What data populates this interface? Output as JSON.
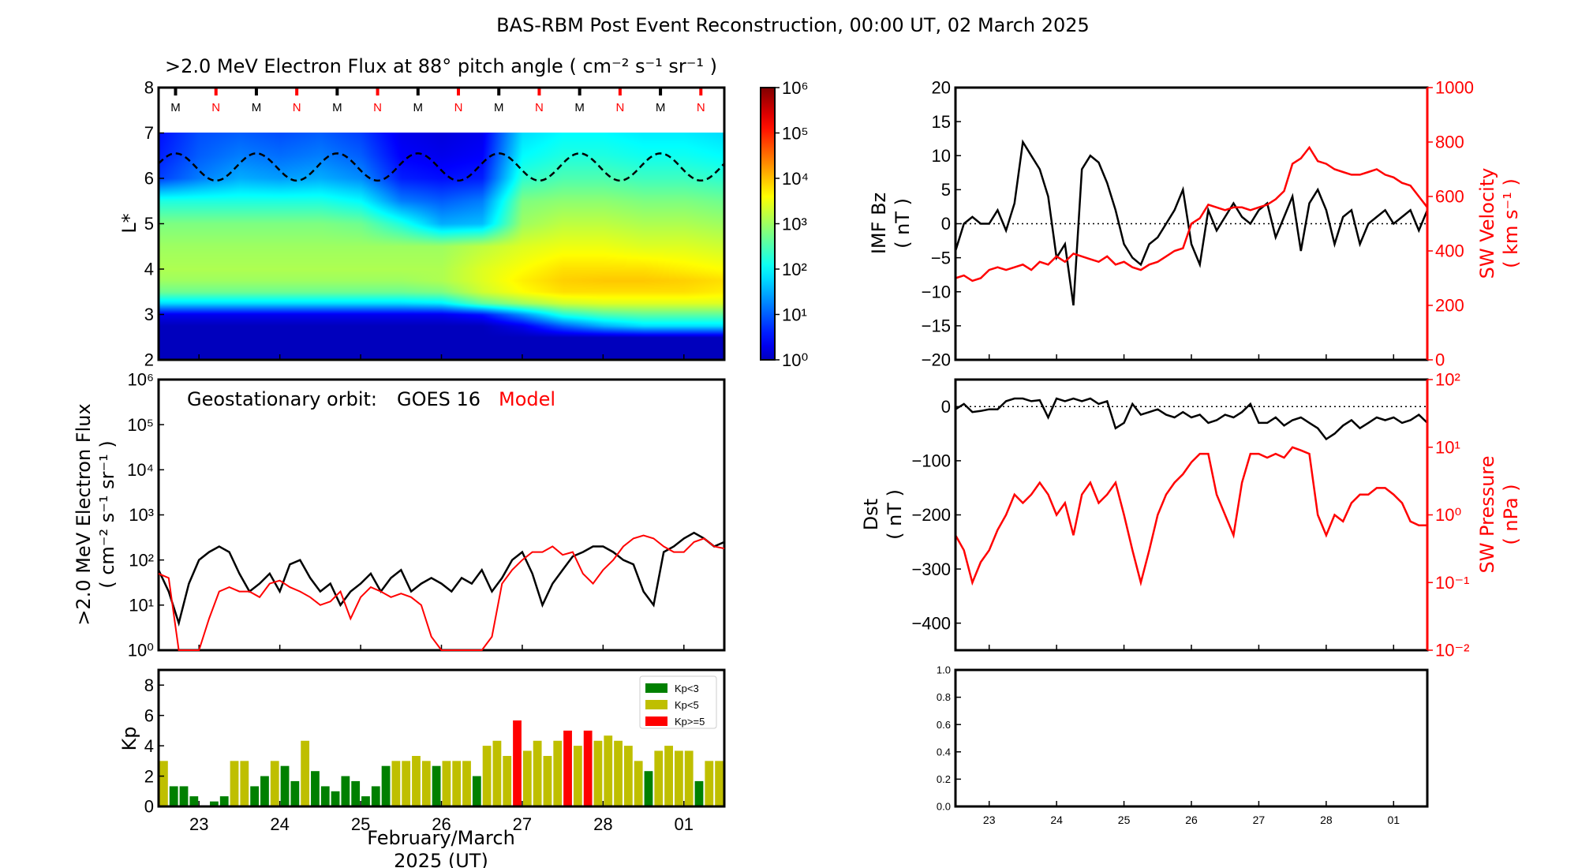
{
  "title": "BAS-RBM Post Event Reconstruction, 00:00 UT, 02 March 2025",
  "x_axis": {
    "tick_labels": [
      "23",
      "24",
      "25",
      "26",
      "27",
      "28",
      "01"
    ],
    "label_line1": "February/March",
    "label_line2": "2025 (UT)",
    "range": [
      "2025-02-22 12:00",
      "2025-03-01 12:00"
    ]
  },
  "colors": {
    "red": "#ff0000",
    "kp_low": "#008000",
    "kp_mid": "#bfbf00",
    "kp_high": "#ff0000"
  },
  "chart_data": [
    {
      "type": "heatmap",
      "title": ">2.0 MeV Electron Flux at 88° pitch angle ( cm⁻² s⁻¹ sr⁻¹ )",
      "ylabel": "L*",
      "ylim": [
        2,
        8
      ],
      "y_ticks": [
        "2",
        "3",
        "4",
        "5",
        "6",
        "7",
        "8"
      ],
      "time_days_from_start": [
        0,
        0.5,
        1,
        1.5,
        2,
        2.5,
        3,
        3.5,
        4,
        4.5,
        5,
        5.5,
        6,
        6.5,
        7
      ],
      "L_values": [
        2,
        2.5,
        2.75,
        3,
        3.25,
        3.5,
        3.75,
        4,
        4.5,
        5,
        5.5,
        6,
        6.5,
        7
      ],
      "log10_flux": [
        [
          0,
          0,
          0,
          0,
          0,
          0,
          0,
          0,
          0,
          0,
          0,
          0,
          0,
          0,
          0
        ],
        [
          0,
          0,
          0,
          0,
          0,
          0,
          0,
          0,
          0,
          0,
          0,
          0,
          0,
          0,
          0
        ],
        [
          0,
          0,
          0,
          0,
          0,
          0,
          0,
          0,
          0,
          0.3,
          1.0,
          1.5,
          1.8,
          1.8,
          1.8
        ],
        [
          0.3,
          0.3,
          0.3,
          0.3,
          0.3,
          0.3,
          0.3,
          0.3,
          0.5,
          1.3,
          2.2,
          2.5,
          2.6,
          2.6,
          2.6
        ],
        [
          1.8,
          1.8,
          1.8,
          1.8,
          1.8,
          1.8,
          1.8,
          1.9,
          2.6,
          3.0,
          3.3,
          3.4,
          3.4,
          3.4,
          3.4
        ],
        [
          2.7,
          2.7,
          2.7,
          2.7,
          2.7,
          2.7,
          2.7,
          2.8,
          3.3,
          3.6,
          3.8,
          3.8,
          3.8,
          3.8,
          3.7
        ],
        [
          3.0,
          3.0,
          3.0,
          3.0,
          3.0,
          3.0,
          3.0,
          3.1,
          3.4,
          3.7,
          3.9,
          3.95,
          3.95,
          3.9,
          3.8
        ],
        [
          3.1,
          3.1,
          3.1,
          3.1,
          3.1,
          3.1,
          3.1,
          3.1,
          3.4,
          3.6,
          3.8,
          3.8,
          3.8,
          3.7,
          3.6
        ],
        [
          3.0,
          3.0,
          3.0,
          3.0,
          3.0,
          3.0,
          3.0,
          3.0,
          3.2,
          3.4,
          3.5,
          3.5,
          3.4,
          3.4,
          3.3
        ],
        [
          2.8,
          2.8,
          2.8,
          2.8,
          2.8,
          2.7,
          2.2,
          1.5,
          1.6,
          3.0,
          3.2,
          3.2,
          3.1,
          3.1,
          3.0
        ],
        [
          2.2,
          2.2,
          2.2,
          2.2,
          2.2,
          2.0,
          1.2,
          1.0,
          1.2,
          2.8,
          2.9,
          2.9,
          2.8,
          2.8,
          2.7
        ],
        [
          0.8,
          1.2,
          1.5,
          1.4,
          1.5,
          1.3,
          0.6,
          0.5,
          0.6,
          2.3,
          2.5,
          2.5,
          2.4,
          2.4,
          2.3
        ],
        [
          0.6,
          1.0,
          1.2,
          1.1,
          1.2,
          1.0,
          0.4,
          0.3,
          0.4,
          2.0,
          2.2,
          2.2,
          2.1,
          2.1,
          2.0
        ],
        [
          0.5,
          0.9,
          1.0,
          0.9,
          1.0,
          0.8,
          0.3,
          0.2,
          0.3,
          1.8,
          2.0,
          2.0,
          1.9,
          1.9,
          1.8
        ]
      ],
      "geo_L_curve": {
        "mean": 6.25,
        "amplitude": 0.3,
        "peak_phase_days": 0.21
      },
      "orbit_markers": [
        {
          "label": "M",
          "t": 0.21,
          "color": "#000000"
        },
        {
          "label": "N",
          "t": 0.71,
          "color": "#ff0000"
        },
        {
          "label": "M",
          "t": 1.21,
          "color": "#000000"
        },
        {
          "label": "N",
          "t": 1.71,
          "color": "#ff0000"
        },
        {
          "label": "M",
          "t": 2.21,
          "color": "#000000"
        },
        {
          "label": "N",
          "t": 2.71,
          "color": "#ff0000"
        },
        {
          "label": "M",
          "t": 3.21,
          "color": "#000000"
        },
        {
          "label": "N",
          "t": 3.71,
          "color": "#ff0000"
        },
        {
          "label": "M",
          "t": 4.21,
          "color": "#000000"
        },
        {
          "label": "N",
          "t": 4.71,
          "color": "#ff0000"
        },
        {
          "label": "M",
          "t": 5.21,
          "color": "#000000"
        },
        {
          "label": "N",
          "t": 5.71,
          "color": "#ff0000"
        },
        {
          "label": "M",
          "t": 6.21,
          "color": "#000000"
        },
        {
          "label": "N",
          "t": 6.71,
          "color": "#ff0000"
        }
      ],
      "colorbar": {
        "scale": "log",
        "range": [
          1,
          1000000
        ],
        "tick_exponents": [
          0,
          1,
          2,
          3,
          4,
          5,
          6
        ],
        "colormap": "jet"
      }
    },
    {
      "type": "line",
      "annotation": {
        "prefix": "Geostationary orbit:",
        "satellite": "GOES 16",
        "model": "Model"
      },
      "ylabel_line1": ">2.0 MeV Electron Flux",
      "ylabel_line2": "( cm⁻² s⁻¹ sr⁻¹ )",
      "yscale": "log",
      "ylim": [
        1,
        1000000
      ],
      "tick_exponents": [
        0,
        1,
        2,
        3,
        4,
        5,
        6
      ],
      "x_step_hours": 3,
      "series": [
        {
          "color": "#000000",
          "values": [
            60,
            20,
            4,
            30,
            100,
            150,
            200,
            150,
            50,
            20,
            30,
            50,
            20,
            80,
            100,
            40,
            20,
            30,
            10,
            20,
            30,
            50,
            20,
            40,
            60,
            20,
            30,
            40,
            30,
            20,
            40,
            30,
            60,
            20,
            40,
            100,
            150,
            50,
            10,
            30,
            60,
            120,
            150,
            200,
            200,
            150,
            100,
            80,
            20,
            10,
            150,
            200,
            300,
            400,
            300,
            200,
            250
          ]
        },
        {
          "color": "#ff0000",
          "values": [
            50,
            40,
            1,
            1,
            1,
            5,
            20,
            25,
            20,
            20,
            15,
            30,
            35,
            25,
            20,
            15,
            10,
            12,
            20,
            5,
            15,
            25,
            20,
            15,
            18,
            15,
            10,
            2,
            1,
            1,
            1,
            1,
            1,
            2,
            30,
            60,
            100,
            150,
            150,
            200,
            130,
            150,
            50,
            30,
            60,
            100,
            200,
            300,
            350,
            300,
            200,
            150,
            150,
            250,
            300,
            200,
            180
          ]
        }
      ]
    },
    {
      "type": "bar",
      "ylabel": "Kp",
      "ylim": [
        0,
        9
      ],
      "y_ticks": [
        "0",
        "2",
        "4",
        "6",
        "8"
      ],
      "bar_hours": 3,
      "values": [
        3,
        1.33,
        1.33,
        0.67,
        0,
        0.33,
        0.67,
        3,
        3,
        1.33,
        2,
        3,
        2.67,
        1.67,
        4.33,
        2.33,
        1.33,
        1,
        2,
        1.67,
        0.67,
        1.33,
        2.67,
        3,
        3,
        3.33,
        3,
        2.67,
        3,
        3,
        3,
        2,
        4,
        4.33,
        3.33,
        5.67,
        3.67,
        4.33,
        3.33,
        4.33,
        5,
        4,
        5,
        4.33,
        4.67,
        4.33,
        4,
        3,
        2.33,
        3.67,
        4,
        3.67,
        3.67,
        1.67,
        3,
        3
      ],
      "legend": [
        {
          "label": "Kp<3",
          "color": "#008000"
        },
        {
          "label": "Kp<5",
          "color": "#bfbf00"
        },
        {
          "label": "Kp>=5",
          "color": "#ff0000"
        }
      ],
      "legend_position": "top-right"
    },
    {
      "type": "line",
      "ylabel_left_line1": "IMF Bz",
      "ylabel_left_line2": "( nT )",
      "ylabel_right_line1": "SW Velocity",
      "ylabel_right_line2": "( km s⁻¹ )",
      "ylim_left": [
        -20,
        20
      ],
      "y_ticks_left": [
        "20",
        "15",
        "10",
        "5",
        "0",
        "−5",
        "−10",
        "−15",
        "−20"
      ],
      "ylim_right": [
        0,
        1000
      ],
      "y_ticks_right": [
        "0",
        "200",
        "400",
        "600",
        "800",
        "1000"
      ],
      "x_step_hours": 3,
      "series": [
        {
          "axis": "left",
          "color": "#000000",
          "values": [
            -4,
            0,
            1,
            0,
            0,
            2,
            -1,
            3,
            12,
            10,
            8,
            4,
            -5,
            -3,
            -12,
            8,
            10,
            9,
            6,
            2,
            -3,
            -5,
            -6,
            -3,
            -2,
            0,
            2,
            5,
            -3,
            -6,
            2,
            -1,
            1,
            3,
            1,
            0,
            2,
            3,
            -2,
            1,
            4,
            -4,
            3,
            5,
            2,
            -3,
            1,
            2,
            -3,
            0,
            1,
            2,
            0,
            1,
            2,
            -1,
            2
          ]
        },
        {
          "axis": "right",
          "color": "#ff0000",
          "values": [
            300,
            310,
            290,
            300,
            330,
            340,
            330,
            340,
            350,
            330,
            360,
            350,
            380,
            360,
            390,
            380,
            370,
            360,
            380,
            350,
            360,
            340,
            330,
            350,
            360,
            380,
            400,
            410,
            500,
            520,
            570,
            560,
            550,
            560,
            560,
            550,
            560,
            570,
            590,
            620,
            720,
            740,
            780,
            730,
            720,
            700,
            690,
            680,
            680,
            690,
            700,
            680,
            670,
            650,
            640,
            600,
            560
          ]
        }
      ]
    },
    {
      "type": "line",
      "ylabel_left_line1": "Dst",
      "ylabel_left_line2": "( nT )",
      "ylabel_right_line1": "SW Pressure",
      "ylabel_right_line2": "( nPa )",
      "ylim_left": [
        -450,
        50
      ],
      "y_ticks_left": [
        "0",
        "−100",
        "−200",
        "−300",
        "−400"
      ],
      "yscale_right": "log",
      "ylim_right": [
        0.01,
        100
      ],
      "tick_exponents_right": [
        -2,
        -1,
        0,
        1,
        2
      ],
      "x_step_hours": 3,
      "series": [
        {
          "axis": "left",
          "color": "#000000",
          "values": [
            -5,
            5,
            -10,
            -8,
            -5,
            -5,
            10,
            15,
            15,
            10,
            12,
            -20,
            15,
            10,
            15,
            10,
            15,
            5,
            10,
            -40,
            -30,
            5,
            -15,
            -10,
            -5,
            -15,
            -20,
            -10,
            -20,
            -15,
            -30,
            -25,
            -15,
            -20,
            -10,
            5,
            -30,
            -30,
            -20,
            -35,
            -25,
            -20,
            -30,
            -40,
            -60,
            -50,
            -35,
            -25,
            -40,
            -30,
            -20,
            -25,
            -20,
            -30,
            -25,
            -15,
            -30
          ]
        },
        {
          "axis": "right",
          "color": "#ff0000",
          "values": [
            0.5,
            0.3,
            0.1,
            0.2,
            0.3,
            0.6,
            1,
            2,
            1.5,
            2,
            3,
            2,
            1,
            1.5,
            0.5,
            2,
            3,
            1.5,
            2,
            3,
            1,
            0.3,
            0.1,
            0.3,
            1,
            2,
            3,
            4,
            6,
            8,
            8,
            2,
            1,
            0.5,
            3,
            8,
            8,
            7,
            8,
            7,
            10,
            9,
            8,
            1,
            0.5,
            1,
            0.8,
            1.5,
            2,
            2,
            2.5,
            2.5,
            2,
            1.5,
            0.8,
            0.7,
            0.7
          ]
        }
      ]
    },
    {
      "type": "line",
      "ylim": [
        0,
        1
      ],
      "y_ticks": [
        "0.0",
        "0.2",
        "0.4",
        "0.6",
        "0.8",
        "1.0"
      ],
      "series": []
    }
  ]
}
